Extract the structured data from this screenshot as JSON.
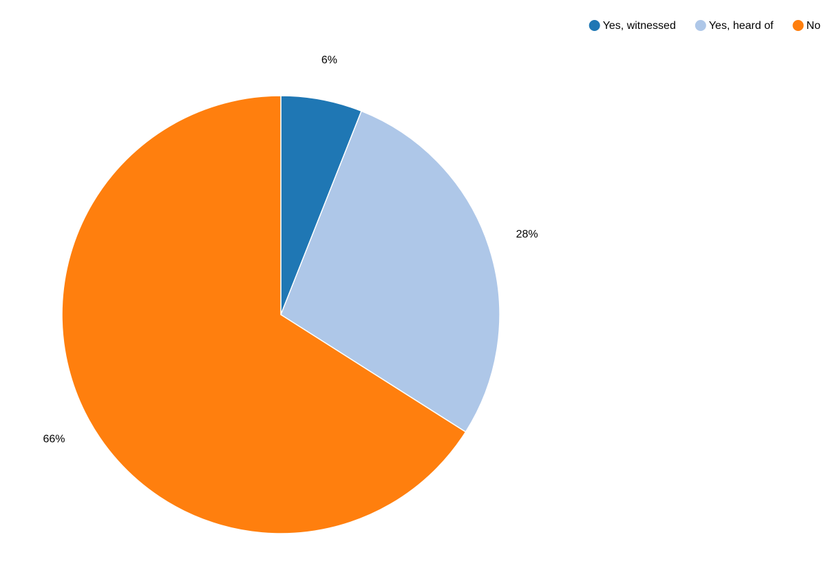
{
  "chart_data": {
    "type": "pie",
    "categories": [
      "Yes, witnessed",
      "Yes, heard of",
      "No"
    ],
    "values": [
      6,
      28,
      66
    ],
    "value_labels": [
      "6%",
      "28%",
      "66%"
    ],
    "colors": [
      "#1f77b4",
      "#aec7e8",
      "#ff7f0e"
    ],
    "legend": "top-right"
  }
}
